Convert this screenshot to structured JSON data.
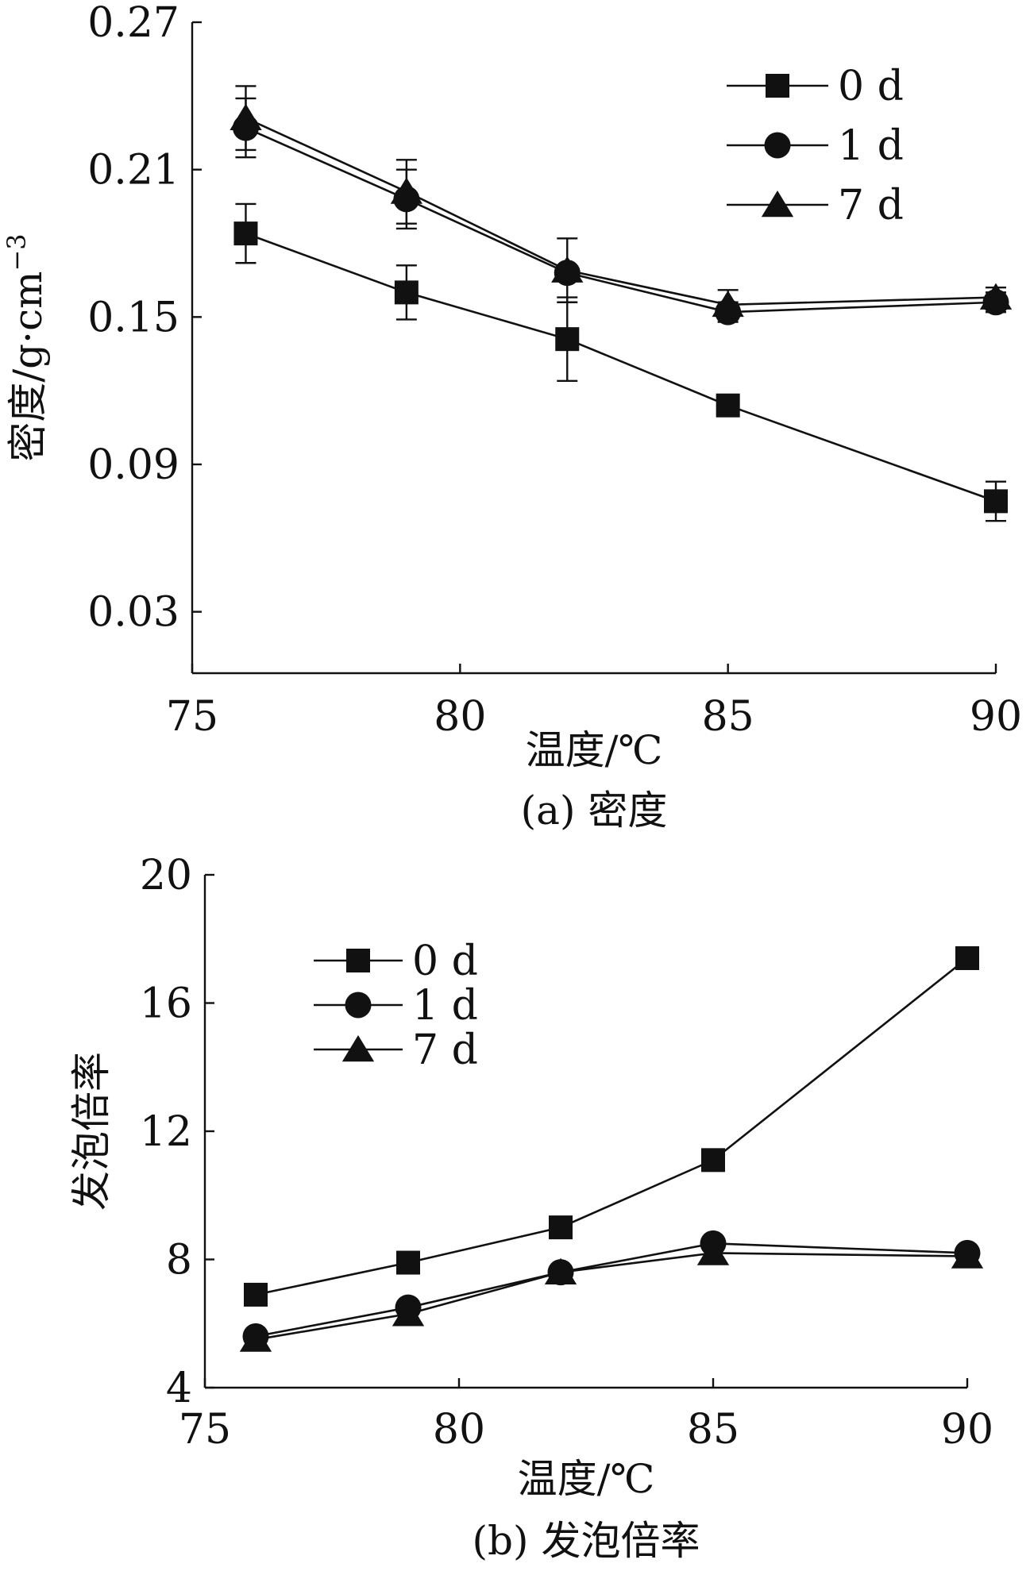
{
  "chart_data": [
    {
      "type": "line",
      "title": "",
      "caption": "(a) 密度",
      "xlabel": "温度/℃",
      "ylabel_main": "密度/g",
      "ylabel_dot": "·",
      "ylabel_unit": "cm",
      "ylabel_exp": "−3",
      "xlim": [
        75,
        90
      ],
      "ylim": [
        0.005,
        0.27
      ],
      "xticks": [
        75,
        80,
        85,
        90
      ],
      "xtick_labels": [
        "75",
        "80",
        "85",
        "90"
      ],
      "yticks": [
        0.03,
        0.09,
        0.15,
        0.21,
        0.27
      ],
      "ytick_labels": [
        "0.03",
        "0.09",
        "0.15",
        "0.21",
        "0.27"
      ],
      "grid": false,
      "legend_position": "top-right",
      "x": [
        76,
        79,
        82,
        85,
        90
      ],
      "series": [
        {
          "name": "0 d",
          "marker": "square",
          "values": [
            0.184,
            0.16,
            0.141,
            0.114,
            0.075
          ],
          "error": [
            0.012,
            0.011,
            0.017,
            0.0,
            0.008
          ]
        },
        {
          "name": "1 d",
          "marker": "circle",
          "values": [
            0.227,
            0.198,
            0.168,
            0.152,
            0.156
          ],
          "error": [
            0.012,
            0.012,
            0.0,
            0.004,
            0.004
          ]
        },
        {
          "name": "7 d",
          "marker": "triangle",
          "values": [
            0.231,
            0.201,
            0.169,
            0.155,
            0.158
          ],
          "error": [
            0.013,
            0.013,
            0.013,
            0.006,
            0.004
          ]
        }
      ]
    },
    {
      "type": "line",
      "title": "",
      "caption": "(b) 发泡倍率",
      "xlabel": "温度/℃",
      "ylabel_main": "发泡倍率",
      "xlim": [
        75,
        90
      ],
      "ylim": [
        4,
        20
      ],
      "xticks": [
        75,
        80,
        85,
        90
      ],
      "xtick_labels": [
        "75",
        "80",
        "85",
        "90"
      ],
      "yticks": [
        4,
        8,
        12,
        16,
        20
      ],
      "ytick_labels": [
        "4",
        "8",
        "12",
        "16",
        "20"
      ],
      "grid": false,
      "legend_position": "top-left",
      "x": [
        76,
        79,
        82,
        85,
        90
      ],
      "series": [
        {
          "name": "0 d",
          "marker": "square",
          "values": [
            6.9,
            7.9,
            9.0,
            11.1,
            17.4
          ]
        },
        {
          "name": "1 d",
          "marker": "circle",
          "values": [
            5.6,
            6.5,
            7.6,
            8.5,
            8.2
          ]
        },
        {
          "name": "7 d",
          "marker": "triangle",
          "values": [
            5.5,
            6.3,
            7.6,
            8.2,
            8.1
          ]
        }
      ]
    }
  ]
}
